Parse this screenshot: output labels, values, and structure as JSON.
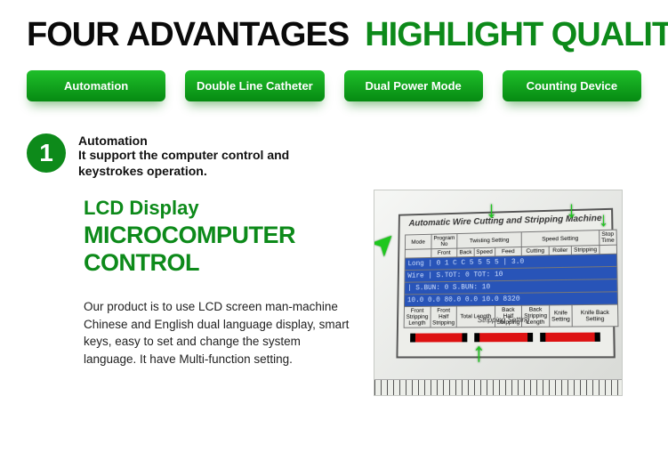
{
  "headline": {
    "left": "FOUR ADVANTAGES",
    "right": "HIGHLIGHT QUALITY"
  },
  "tabs": [
    "Automation",
    "Double Line Catheter",
    "Dual Power Mode",
    "Counting Device"
  ],
  "feature": {
    "num": "1",
    "title": "Automation",
    "sub": "It support the computer control and keystrokes operation."
  },
  "lcd": {
    "h1": "LCD Display",
    "h2": "MICROCOMPUTER CONTROL"
  },
  "body": "Our product is to use LCD screen man-machine Chinese and English dual language display, smart keys, easy to set and change the system language. It have Multi-function setting.",
  "panel": {
    "title": "Automatic Wire Cutting and Stripping Machine",
    "top_headers": [
      "Mode",
      "Program No",
      "Twisting Setting",
      "Speed Setting",
      "Stop Time"
    ],
    "sub_headers": [
      "",
      "Front",
      "Back",
      "Speed",
      "Feed",
      "Cutting",
      "Roller",
      "Stripping",
      ""
    ],
    "lcd_lines": [
      "Long  | 0 1 C C 5 5  5  5  | 3.0",
      "Wire  | S.TOT:     0 TOT:   10",
      "      | S.BUN:     0 S.BUN:  10",
      "10.0 0.0   80.0  0.0 10.0 8320"
    ],
    "bottom_headers": [
      "Front Stripping Length",
      "Front Half Stripping",
      "Total Length",
      "Back Half Stripping",
      "Back Stripping Length",
      "Knife Setting",
      "Knife Back Setting"
    ],
    "strip_label": "Stripping Setting"
  },
  "colors": {
    "green": "#0d8a1a",
    "tab_top": "#1fbf2a",
    "tab_bottom": "#068a12",
    "arrow": "#1ec71e",
    "lcd_bg": "#2854b8"
  }
}
